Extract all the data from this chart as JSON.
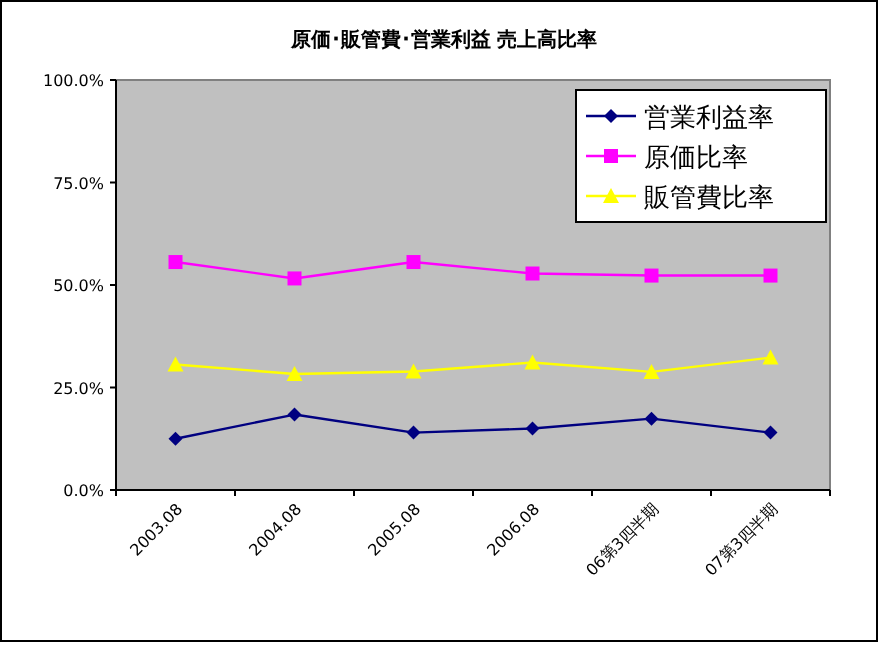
{
  "chart_data": {
    "type": "line",
    "title": "原価･販管費･営業利益 売上高比率",
    "categories": [
      "2003.08",
      "2004.08",
      "2005.08",
      "2006.08",
      "06第3四半期",
      "07第3四半期"
    ],
    "series": [
      {
        "name": "営業利益率",
        "color": "#000080",
        "marker": "diamond",
        "values": [
          12.5,
          18.4,
          14.0,
          15.0,
          17.4,
          14.0
        ]
      },
      {
        "name": "原価比率",
        "color": "#ff00ff",
        "marker": "square",
        "values": [
          55.6,
          51.6,
          55.6,
          52.8,
          52.3,
          52.3
        ]
      },
      {
        "name": "販管費比率",
        "color": "#ffff00",
        "marker": "triangle",
        "values": [
          30.6,
          28.3,
          28.9,
          31.1,
          28.8,
          32.3
        ]
      }
    ],
    "ylim": [
      0,
      100
    ],
    "yticks": [
      {
        "value": 0,
        "label": "0.0%"
      },
      {
        "value": 25,
        "label": "25.0%"
      },
      {
        "value": 50,
        "label": "50.0%"
      },
      {
        "value": 75,
        "label": "75.0%"
      },
      {
        "value": 100,
        "label": "100.0%"
      }
    ],
    "grid": false,
    "legend": "top right"
  }
}
